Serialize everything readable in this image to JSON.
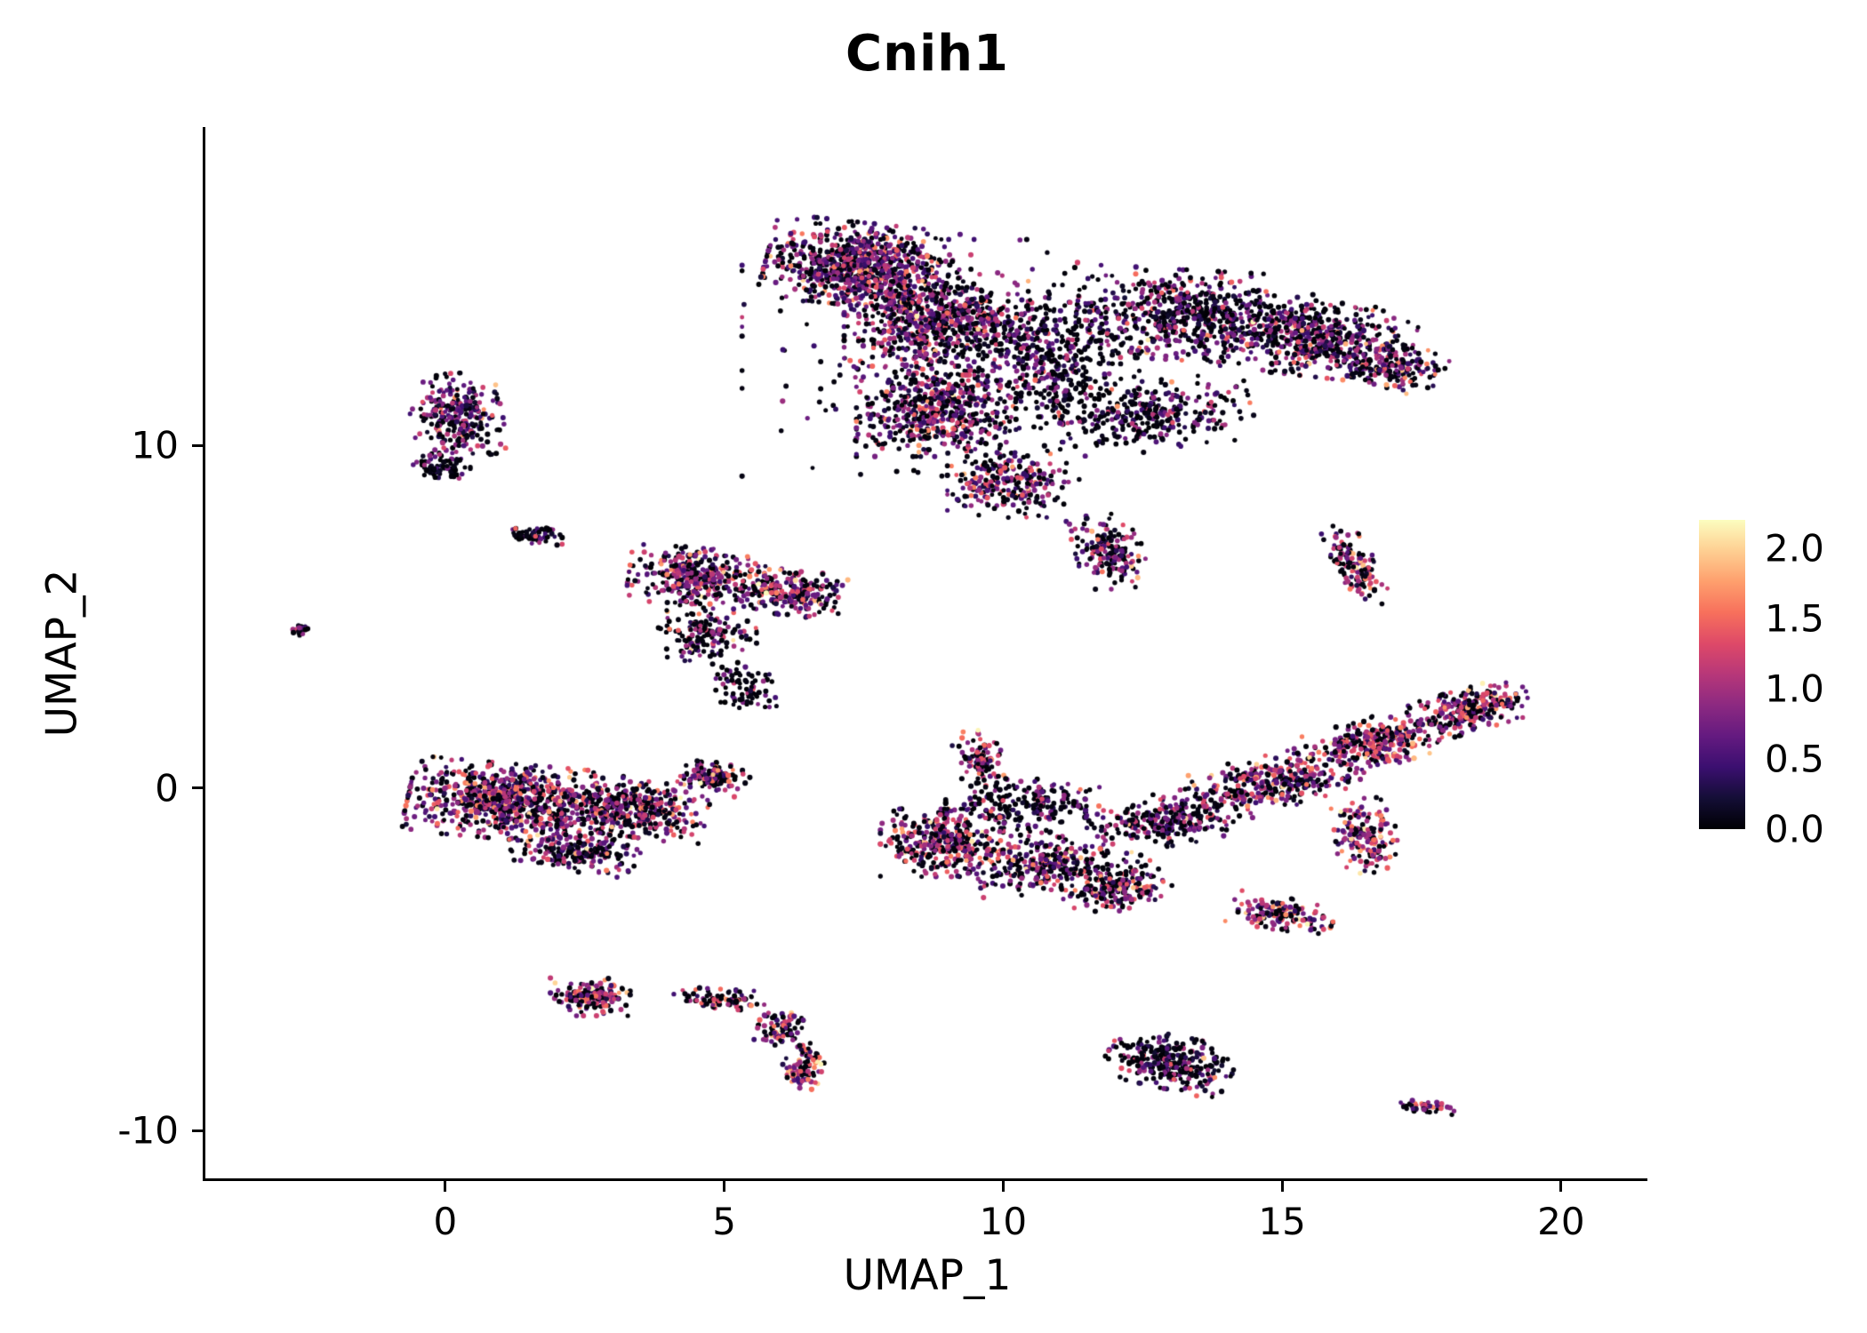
{
  "chart_data": {
    "type": "scatter",
    "title": "Cnih1",
    "xlabel": "UMAP_1",
    "ylabel": "UMAP_2",
    "xlim": [
      -4.3,
      21.5
    ],
    "ylim": [
      -11.4,
      19.3
    ],
    "grid": false,
    "background_color": "#ffffff",
    "axis_color": "#000000",
    "x_ticks": [
      {
        "value": 0,
        "label": "0"
      },
      {
        "value": 5,
        "label": "5"
      },
      {
        "value": 10,
        "label": "10"
      },
      {
        "value": 15,
        "label": "15"
      },
      {
        "value": 20,
        "label": "20"
      }
    ],
    "y_ticks": [
      {
        "value": 10,
        "label": "10"
      },
      {
        "value": 0,
        "label": "0"
      },
      {
        "value": -10,
        "label": "-10"
      }
    ],
    "legend": {
      "position": "right",
      "min": 0.0,
      "max": 2.2,
      "ticks": [
        {
          "value": 2.0,
          "label": "2.0"
        },
        {
          "value": 1.5,
          "label": "1.5"
        },
        {
          "value": 1.0,
          "label": "1.0"
        },
        {
          "value": 0.5,
          "label": "0.5"
        },
        {
          "value": 0.0,
          "label": "0.0"
        }
      ]
    },
    "colormap": {
      "name": "magma",
      "stops": [
        [
          0.0,
          "#000004"
        ],
        [
          0.1,
          "#140e36"
        ],
        [
          0.2,
          "#3b0f70"
        ],
        [
          0.3,
          "#641a80"
        ],
        [
          0.4,
          "#8c2981"
        ],
        [
          0.5,
          "#b73779"
        ],
        [
          0.6,
          "#de4968"
        ],
        [
          0.7,
          "#f7705c"
        ],
        [
          0.8,
          "#fe9f6d"
        ],
        [
          0.9,
          "#fecf92"
        ],
        [
          1.0,
          "#fcfdbf"
        ]
      ]
    },
    "point": {
      "radius": 2.7
    },
    "seed": 7,
    "cluster_fields": [
      "cx",
      "cy",
      "rx",
      "ry",
      "rot_deg",
      "n",
      "p0_zero_fraction",
      "expr_mean",
      "expr_sd"
    ],
    "clusters": [
      [
        7.4,
        15.3,
        1.5,
        1.1,
        -10,
        800,
        0.3,
        0.78,
        0.45
      ],
      [
        8.8,
        13.6,
        1.5,
        1.4,
        0,
        700,
        0.32,
        0.75,
        0.45
      ],
      [
        8.8,
        11.0,
        1.3,
        1.2,
        0,
        500,
        0.35,
        0.85,
        0.5
      ],
      [
        10.9,
        12.6,
        1.4,
        1.9,
        0,
        420,
        0.52,
        0.6,
        0.5
      ],
      [
        13.4,
        13.8,
        1.9,
        1.2,
        -5,
        650,
        0.45,
        0.68,
        0.5
      ],
      [
        15.7,
        13.1,
        1.5,
        1.0,
        -10,
        480,
        0.4,
        0.72,
        0.5
      ],
      [
        17.0,
        12.3,
        0.8,
        0.6,
        -20,
        180,
        0.35,
        0.8,
        0.5
      ],
      [
        12.7,
        10.9,
        1.6,
        0.9,
        10,
        300,
        0.55,
        0.6,
        0.5
      ],
      [
        10.1,
        9.0,
        1.0,
        1.0,
        0,
        260,
        0.4,
        0.8,
        0.5
      ],
      [
        11.9,
        6.9,
        0.55,
        1.0,
        10,
        170,
        0.35,
        0.8,
        0.5
      ],
      [
        9.5,
        12.5,
        3.8,
        3.2,
        0,
        260,
        0.65,
        0.45,
        0.4
      ],
      [
        0.2,
        10.9,
        0.75,
        1.1,
        5,
        270,
        0.35,
        0.7,
        0.45
      ],
      [
        -0.1,
        9.4,
        0.5,
        0.35,
        0,
        80,
        0.6,
        0.45,
        0.4
      ],
      [
        -2.6,
        4.6,
        0.18,
        0.13,
        0,
        22,
        0.4,
        0.8,
        0.4
      ],
      [
        1.6,
        7.4,
        0.45,
        0.28,
        0,
        65,
        0.6,
        0.5,
        0.45
      ],
      [
        4.5,
        6.2,
        1.1,
        0.75,
        -5,
        360,
        0.27,
        0.95,
        0.5
      ],
      [
        6.2,
        5.7,
        0.85,
        0.6,
        -10,
        220,
        0.35,
        0.85,
        0.5
      ],
      [
        4.7,
        4.5,
        0.8,
        0.8,
        0,
        170,
        0.5,
        0.7,
        0.5
      ],
      [
        5.4,
        2.9,
        0.5,
        0.7,
        0,
        80,
        0.6,
        0.6,
        0.45
      ],
      [
        1.2,
        -0.4,
        1.7,
        1.0,
        -8,
        850,
        0.3,
        0.85,
        0.5
      ],
      [
        3.4,
        -0.6,
        1.2,
        0.75,
        -12,
        380,
        0.35,
        0.8,
        0.5
      ],
      [
        4.8,
        0.3,
        0.6,
        0.4,
        -15,
        130,
        0.38,
        0.8,
        0.5
      ],
      [
        2.4,
        -1.9,
        1.1,
        0.5,
        -15,
        200,
        0.4,
        0.75,
        0.5
      ],
      [
        8.9,
        -1.6,
        1.0,
        0.9,
        0,
        340,
        0.35,
        0.9,
        0.5
      ],
      [
        9.6,
        0.8,
        0.4,
        0.8,
        10,
        100,
        0.3,
        1.0,
        0.5
      ],
      [
        10.7,
        -2.2,
        1.1,
        0.8,
        10,
        300,
        0.36,
        0.85,
        0.5
      ],
      [
        12.0,
        -2.9,
        0.9,
        0.6,
        25,
        210,
        0.4,
        0.8,
        0.5
      ],
      [
        10.4,
        -0.5,
        1.3,
        0.7,
        0,
        220,
        0.58,
        0.55,
        0.5
      ],
      [
        13.0,
        -0.9,
        1.3,
        0.7,
        15,
        280,
        0.45,
        0.75,
        0.5
      ],
      [
        14.9,
        0.2,
        1.3,
        0.7,
        20,
        300,
        0.35,
        0.9,
        0.5
      ],
      [
        16.6,
        1.3,
        1.2,
        0.65,
        25,
        320,
        0.28,
        1.0,
        0.5
      ],
      [
        18.4,
        2.3,
        1.0,
        0.55,
        25,
        260,
        0.28,
        1.0,
        0.5
      ],
      [
        16.5,
        -1.4,
        0.5,
        1.0,
        5,
        160,
        0.25,
        1.1,
        0.5
      ],
      [
        16.3,
        6.5,
        0.4,
        1.1,
        15,
        130,
        0.33,
        0.9,
        0.5
      ],
      [
        15.0,
        -3.7,
        0.85,
        0.45,
        -15,
        150,
        0.3,
        1.0,
        0.5
      ],
      [
        2.6,
        -6.1,
        0.65,
        0.5,
        0,
        160,
        0.3,
        1.0,
        0.5
      ],
      [
        4.9,
        -6.2,
        0.75,
        0.3,
        -5,
        90,
        0.4,
        0.85,
        0.5
      ],
      [
        6.0,
        -7.0,
        0.4,
        0.5,
        -35,
        80,
        0.35,
        0.9,
        0.5
      ],
      [
        6.4,
        -8.1,
        0.35,
        0.6,
        -10,
        90,
        0.3,
        1.0,
        0.55
      ],
      [
        13.0,
        -8.0,
        1.05,
        0.7,
        -20,
        300,
        0.5,
        0.6,
        0.5
      ],
      [
        17.6,
        -9.3,
        0.45,
        0.18,
        -8,
        45,
        0.45,
        0.75,
        0.45
      ]
    ]
  }
}
